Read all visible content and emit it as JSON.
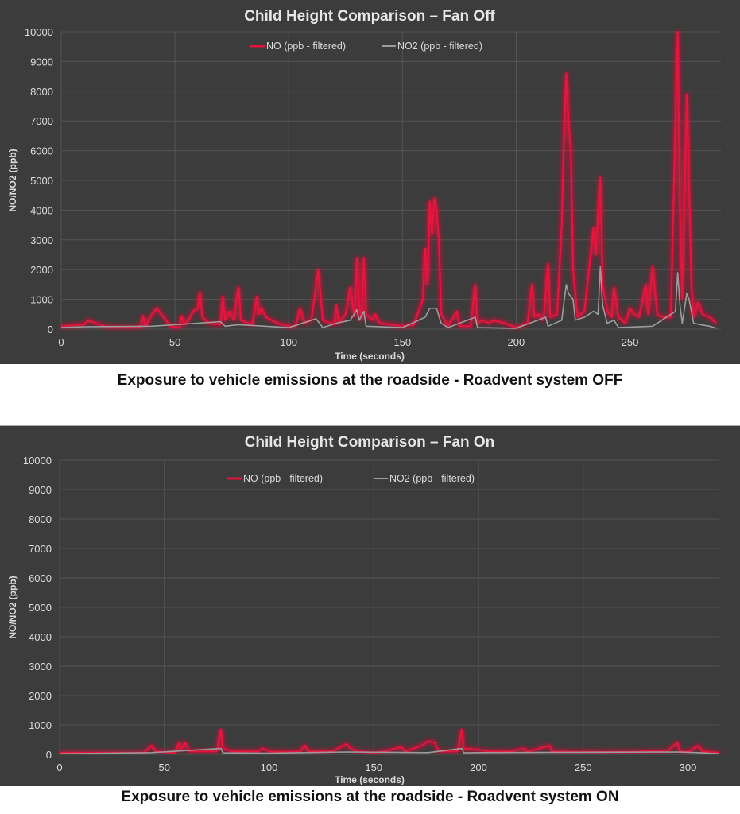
{
  "colors": {
    "background": "#3c3c3c",
    "grid": "#555555",
    "no": "#e3123c",
    "no2": "#9c9c9c"
  },
  "captions": [
    "Exposure to vehicle emissions at the roadside - Roadvent system OFF",
    "Exposure to vehicle emissions at the roadside - Roadvent system ON"
  ],
  "chart_data": [
    {
      "type": "line",
      "title": "Child Height Comparison – Fan Off",
      "xlabel": "Time (seconds)",
      "ylabel": "NO/NO2 (ppb)",
      "xlim": [
        0,
        290
      ],
      "ylim": [
        0,
        10000
      ],
      "xticks": [
        0,
        50,
        100,
        150,
        200,
        250
      ],
      "yticks": [
        0,
        1000,
        2000,
        3000,
        4000,
        5000,
        6000,
        7000,
        8000,
        9000,
        10000
      ],
      "grid": true,
      "legend_position": "top-center",
      "series": [
        {
          "name": "NO (ppb - filtered)",
          "color": "#e3123c",
          "points": [
            [
              0,
              100
            ],
            [
              10,
              150
            ],
            [
              12,
              300
            ],
            [
              15,
              200
            ],
            [
              20,
              80
            ],
            [
              30,
              60
            ],
            [
              35,
              80
            ],
            [
              36,
              450
            ],
            [
              37,
              100
            ],
            [
              40,
              500
            ],
            [
              42,
              700
            ],
            [
              45,
              400
            ],
            [
              48,
              100
            ],
            [
              52,
              50
            ],
            [
              53,
              450
            ],
            [
              54,
              150
            ],
            [
              56,
              300
            ],
            [
              58,
              600
            ],
            [
              60,
              700
            ],
            [
              61,
              1250
            ],
            [
              62,
              400
            ],
            [
              65,
              200
            ],
            [
              70,
              150
            ],
            [
              71,
              1100
            ],
            [
              72,
              300
            ],
            [
              74,
              600
            ],
            [
              76,
              300
            ],
            [
              77,
              1000
            ],
            [
              78,
              1400
            ],
            [
              79,
              300
            ],
            [
              84,
              150
            ],
            [
              86,
              1100
            ],
            [
              87,
              500
            ],
            [
              88,
              700
            ],
            [
              90,
              400
            ],
            [
              95,
              200
            ],
            [
              100,
              100
            ],
            [
              103,
              100
            ],
            [
              105,
              700
            ],
            [
              107,
              200
            ],
            [
              110,
              300
            ],
            [
              113,
              2000
            ],
            [
              115,
              300
            ],
            [
              120,
              150
            ],
            [
              121,
              800
            ],
            [
              122,
              200
            ],
            [
              125,
              500
            ],
            [
              127,
              1400
            ],
            [
              129,
              400
            ],
            [
              130,
              2400
            ],
            [
              131,
              800
            ],
            [
              132,
              300
            ],
            [
              133,
              2400
            ],
            [
              134,
              500
            ],
            [
              137,
              300
            ],
            [
              138,
              500
            ],
            [
              140,
              200
            ],
            [
              145,
              150
            ],
            [
              150,
              100
            ],
            [
              155,
              150
            ],
            [
              159,
              1000
            ],
            [
              160,
              2700
            ],
            [
              161,
              1500
            ],
            [
              162,
              4300
            ],
            [
              163,
              3200
            ],
            [
              164,
              4400
            ],
            [
              165,
              4000
            ],
            [
              166,
              3000
            ],
            [
              167,
              500
            ],
            [
              170,
              100
            ],
            [
              174,
              600
            ],
            [
              175,
              100
            ],
            [
              180,
              100
            ],
            [
              182,
              1500
            ],
            [
              183,
              200
            ],
            [
              185,
              300
            ],
            [
              188,
              200
            ],
            [
              190,
              300
            ],
            [
              195,
              200
            ],
            [
              200,
              50
            ],
            [
              205,
              200
            ],
            [
              207,
              1500
            ],
            [
              208,
              400
            ],
            [
              210,
              500
            ],
            [
              212,
              300
            ],
            [
              214,
              2200
            ],
            [
              215,
              400
            ],
            [
              218,
              500
            ],
            [
              220,
              3500
            ],
            [
              221,
              6500
            ],
            [
              222,
              8600
            ],
            [
              223,
              7000
            ],
            [
              224,
              6000
            ],
            [
              225,
              2000
            ],
            [
              227,
              400
            ],
            [
              230,
              600
            ],
            [
              232,
              2000
            ],
            [
              234,
              3400
            ],
            [
              235,
              2500
            ],
            [
              237,
              5100
            ],
            [
              238,
              1500
            ],
            [
              240,
              600
            ],
            [
              242,
              400
            ],
            [
              243,
              1400
            ],
            [
              245,
              400
            ],
            [
              248,
              200
            ],
            [
              250,
              700
            ],
            [
              252,
              500
            ],
            [
              254,
              400
            ],
            [
              257,
              1500
            ],
            [
              258,
              500
            ],
            [
              260,
              2100
            ],
            [
              262,
              500
            ],
            [
              264,
              400
            ],
            [
              268,
              400
            ],
            [
              270,
              7000
            ],
            [
              271,
              10000
            ],
            [
              272,
              4000
            ],
            [
              273,
              1000
            ],
            [
              275,
              7900
            ],
            [
              276,
              5000
            ],
            [
              277,
              1500
            ],
            [
              278,
              400
            ],
            [
              280,
              900
            ],
            [
              282,
              500
            ],
            [
              285,
              400
            ],
            [
              288,
              200
            ]
          ]
        },
        {
          "name": "NO2 (ppb - filtered)",
          "color": "#9c9c9c",
          "points": [
            [
              0,
              50
            ],
            [
              10,
              80
            ],
            [
              40,
              100
            ],
            [
              60,
              200
            ],
            [
              70,
              250
            ],
            [
              72,
              100
            ],
            [
              78,
              150
            ],
            [
              100,
              50
            ],
            [
              112,
              350
            ],
            [
              115,
              50
            ],
            [
              121,
              200
            ],
            [
              127,
              300
            ],
            [
              130,
              650
            ],
            [
              131,
              300
            ],
            [
              133,
              600
            ],
            [
              134,
              100
            ],
            [
              150,
              50
            ],
            [
              160,
              400
            ],
            [
              162,
              700
            ],
            [
              165,
              700
            ],
            [
              167,
              200
            ],
            [
              170,
              50
            ],
            [
              182,
              400
            ],
            [
              183,
              50
            ],
            [
              200,
              30
            ],
            [
              213,
              400
            ],
            [
              214,
              100
            ],
            [
              220,
              300
            ],
            [
              222,
              1500
            ],
            [
              223,
              1200
            ],
            [
              225,
              1000
            ],
            [
              226,
              300
            ],
            [
              230,
              400
            ],
            [
              234,
              600
            ],
            [
              236,
              500
            ],
            [
              237,
              2100
            ],
            [
              238,
              800
            ],
            [
              240,
              200
            ],
            [
              243,
              300
            ],
            [
              245,
              50
            ],
            [
              260,
              100
            ],
            [
              270,
              600
            ],
            [
              271,
              1900
            ],
            [
              272,
              800
            ],
            [
              273,
              200
            ],
            [
              275,
              1200
            ],
            [
              276,
              1000
            ],
            [
              278,
              200
            ],
            [
              281,
              150
            ],
            [
              285,
              100
            ],
            [
              288,
              30
            ]
          ]
        }
      ]
    },
    {
      "type": "line",
      "title": "Child Height Comparison – Fan On",
      "xlabel": "Time (seconds)",
      "ylabel": "NO/NO2 (ppb)",
      "xlim": [
        0,
        315
      ],
      "ylim": [
        0,
        10000
      ],
      "xticks": [
        0,
        50,
        100,
        150,
        200,
        250,
        300
      ],
      "yticks": [
        0,
        1000,
        2000,
        3000,
        4000,
        5000,
        6000,
        7000,
        8000,
        9000,
        10000
      ],
      "grid": true,
      "legend_position": "top-center",
      "series": [
        {
          "name": "NO (ppb - filtered)",
          "color": "#e3123c",
          "points": [
            [
              0,
              50
            ],
            [
              40,
              50
            ],
            [
              44,
              300
            ],
            [
              46,
              100
            ],
            [
              55,
              50
            ],
            [
              57,
              400
            ],
            [
              58,
              150
            ],
            [
              60,
              400
            ],
            [
              62,
              100
            ],
            [
              75,
              100
            ],
            [
              77,
              850
            ],
            [
              78,
              200
            ],
            [
              82,
              100
            ],
            [
              95,
              100
            ],
            [
              97,
              200
            ],
            [
              100,
              100
            ],
            [
              105,
              80
            ],
            [
              115,
              100
            ],
            [
              117,
              300
            ],
            [
              119,
              100
            ],
            [
              130,
              100
            ],
            [
              137,
              350
            ],
            [
              139,
              200
            ],
            [
              142,
              100
            ],
            [
              150,
              50
            ],
            [
              155,
              100
            ],
            [
              163,
              250
            ],
            [
              165,
              100
            ],
            [
              173,
              300
            ],
            [
              176,
              450
            ],
            [
              179,
              400
            ],
            [
              181,
              100
            ],
            [
              190,
              100
            ],
            [
              192,
              850
            ],
            [
              193,
              200
            ],
            [
              200,
              150
            ],
            [
              205,
              100
            ],
            [
              215,
              100
            ],
            [
              222,
              200
            ],
            [
              223,
              80
            ],
            [
              234,
              300
            ],
            [
              235,
              100
            ],
            [
              250,
              80
            ],
            [
              275,
              80
            ],
            [
              278,
              100
            ],
            [
              290,
              100
            ],
            [
              295,
              400
            ],
            [
              296,
              100
            ],
            [
              300,
              80
            ],
            [
              305,
              300
            ],
            [
              307,
              100
            ],
            [
              315,
              50
            ]
          ]
        },
        {
          "name": "NO2 (ppb - filtered)",
          "color": "#9c9c9c",
          "points": [
            [
              0,
              20
            ],
            [
              44,
              60
            ],
            [
              77,
              200
            ],
            [
              78,
              50
            ],
            [
              100,
              40
            ],
            [
              137,
              80
            ],
            [
              176,
              60
            ],
            [
              192,
              200
            ],
            [
              193,
              50
            ],
            [
              200,
              60
            ],
            [
              295,
              80
            ],
            [
              305,
              60
            ],
            [
              315,
              20
            ]
          ]
        }
      ]
    }
  ]
}
